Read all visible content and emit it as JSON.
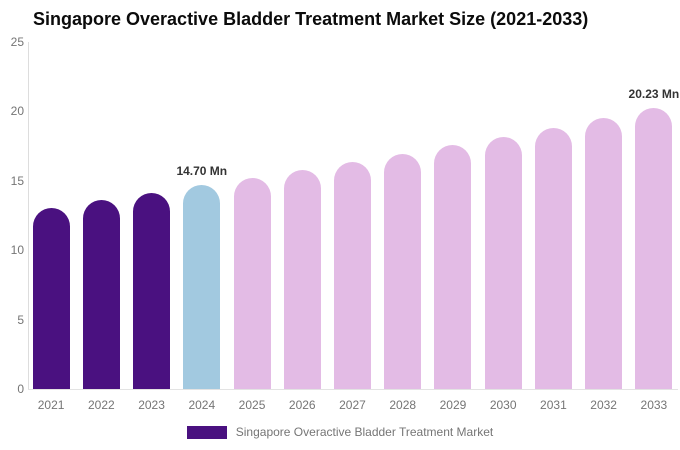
{
  "chart_data": {
    "type": "bar",
    "title": "Singapore Overactive Bladder Treatment Market Size (2021-2033)",
    "xlabel": "",
    "ylabel": "",
    "unit": "Mn",
    "categories": [
      "2021",
      "2022",
      "2023",
      "2024",
      "2025",
      "2026",
      "2027",
      "2028",
      "2029",
      "2030",
      "2031",
      "2032",
      "2033"
    ],
    "values": [
      13.07,
      13.59,
      14.13,
      14.7,
      15.23,
      15.78,
      16.35,
      16.94,
      17.55,
      18.18,
      18.84,
      19.52,
      20.23
    ],
    "segments": [
      "historical",
      "historical",
      "historical",
      "base",
      "forecast",
      "forecast",
      "forecast",
      "forecast",
      "forecast",
      "forecast",
      "forecast",
      "forecast",
      "forecast"
    ],
    "colors": {
      "historical": "#4A1180",
      "base": "#A2C9E0",
      "forecast": "#E3BBE5"
    },
    "data_labels": [
      {
        "category": "2024",
        "text": "14.70 Mn"
      },
      {
        "category": "2033",
        "text": "20.23 Mn"
      }
    ],
    "ylim": [
      0,
      25
    ],
    "yticks": [
      0,
      5,
      10,
      15,
      20,
      25
    ],
    "grid": false,
    "legend": {
      "position": "bottom",
      "label": "Singapore Overactive Bladder Treatment Market",
      "color": "#4A1180"
    },
    "axis_text_color": "#757575"
  }
}
